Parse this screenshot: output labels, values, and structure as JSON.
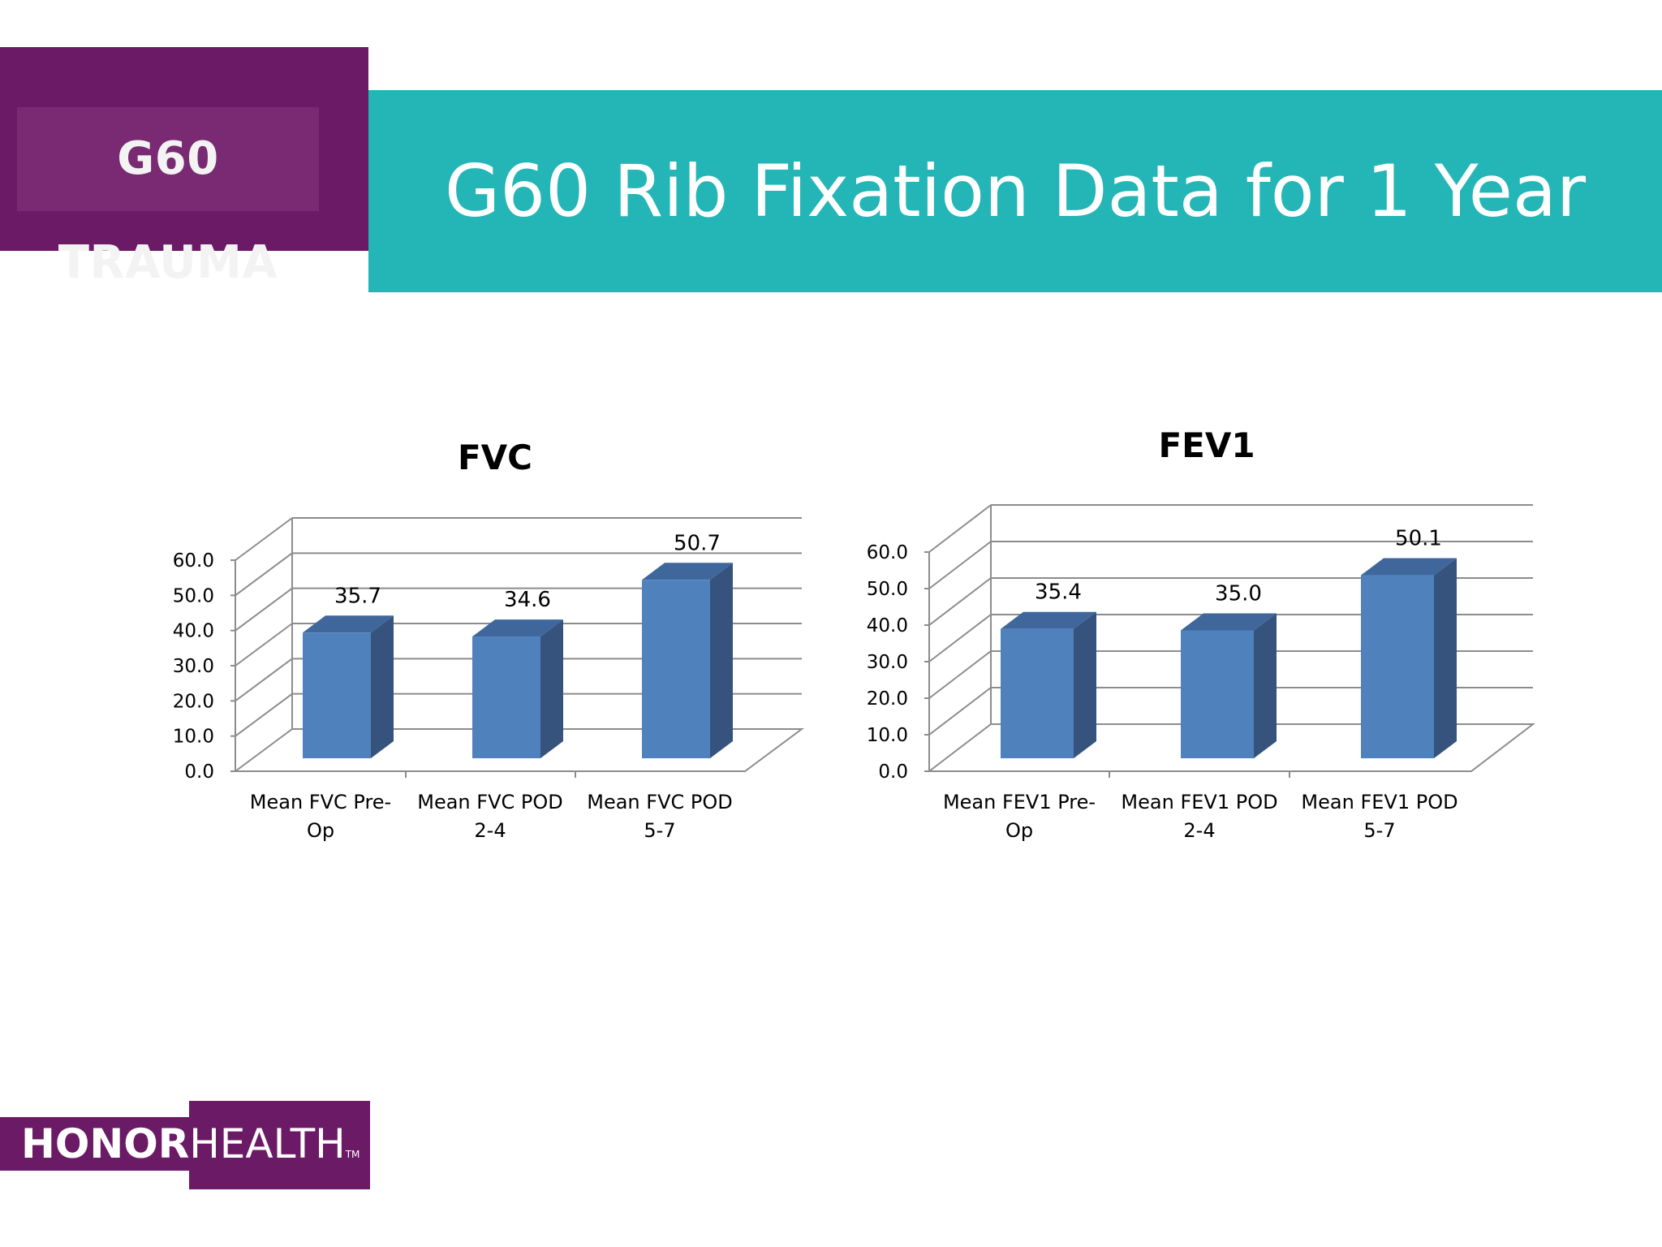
{
  "header": {
    "brand": "G60 TRAUMA",
    "title": "G60 Rib Fixation Data for 1 Year"
  },
  "footer": {
    "logo_bold": "HONOR",
    "logo_light": "HEALTH",
    "logo_tm": "TM"
  },
  "colors": {
    "purple": "#6b1a65",
    "teal": "#24b5b6",
    "bar_front": "#4f81bd",
    "bar_side": "#35537d",
    "bar_top": "#3f679c"
  },
  "chart_data": [
    {
      "type": "bar",
      "title": "FVC",
      "categories": [
        [
          "Mean FVC Pre-",
          "Op"
        ],
        [
          "Mean FVC POD",
          "2-4"
        ],
        [
          "Mean FVC POD",
          "5-7"
        ]
      ],
      "values": [
        35.7,
        34.6,
        50.7
      ],
      "value_labels": [
        "35.7",
        "34.6",
        "50.7"
      ],
      "yticks": [
        "0.0",
        "10.0",
        "20.0",
        "30.0",
        "40.0",
        "50.0",
        "60.0"
      ],
      "ylim": [
        0,
        60
      ],
      "style": "3d-column",
      "legend": "none",
      "grid": true
    },
    {
      "type": "bar",
      "title": "FEV1",
      "categories": [
        [
          "Mean FEV1 Pre-",
          "Op"
        ],
        [
          "Mean FEV1 POD",
          "2-4"
        ],
        [
          "Mean FEV1 POD",
          "5-7"
        ]
      ],
      "values": [
        35.4,
        35.0,
        50.1
      ],
      "value_labels": [
        "35.4",
        "35.0",
        "50.1"
      ],
      "yticks": [
        "0.0",
        "10.0",
        "20.0",
        "30.0",
        "40.0",
        "50.0",
        "60.0"
      ],
      "ylim": [
        0,
        60
      ],
      "style": "3d-column",
      "legend": "none",
      "grid": true
    }
  ]
}
